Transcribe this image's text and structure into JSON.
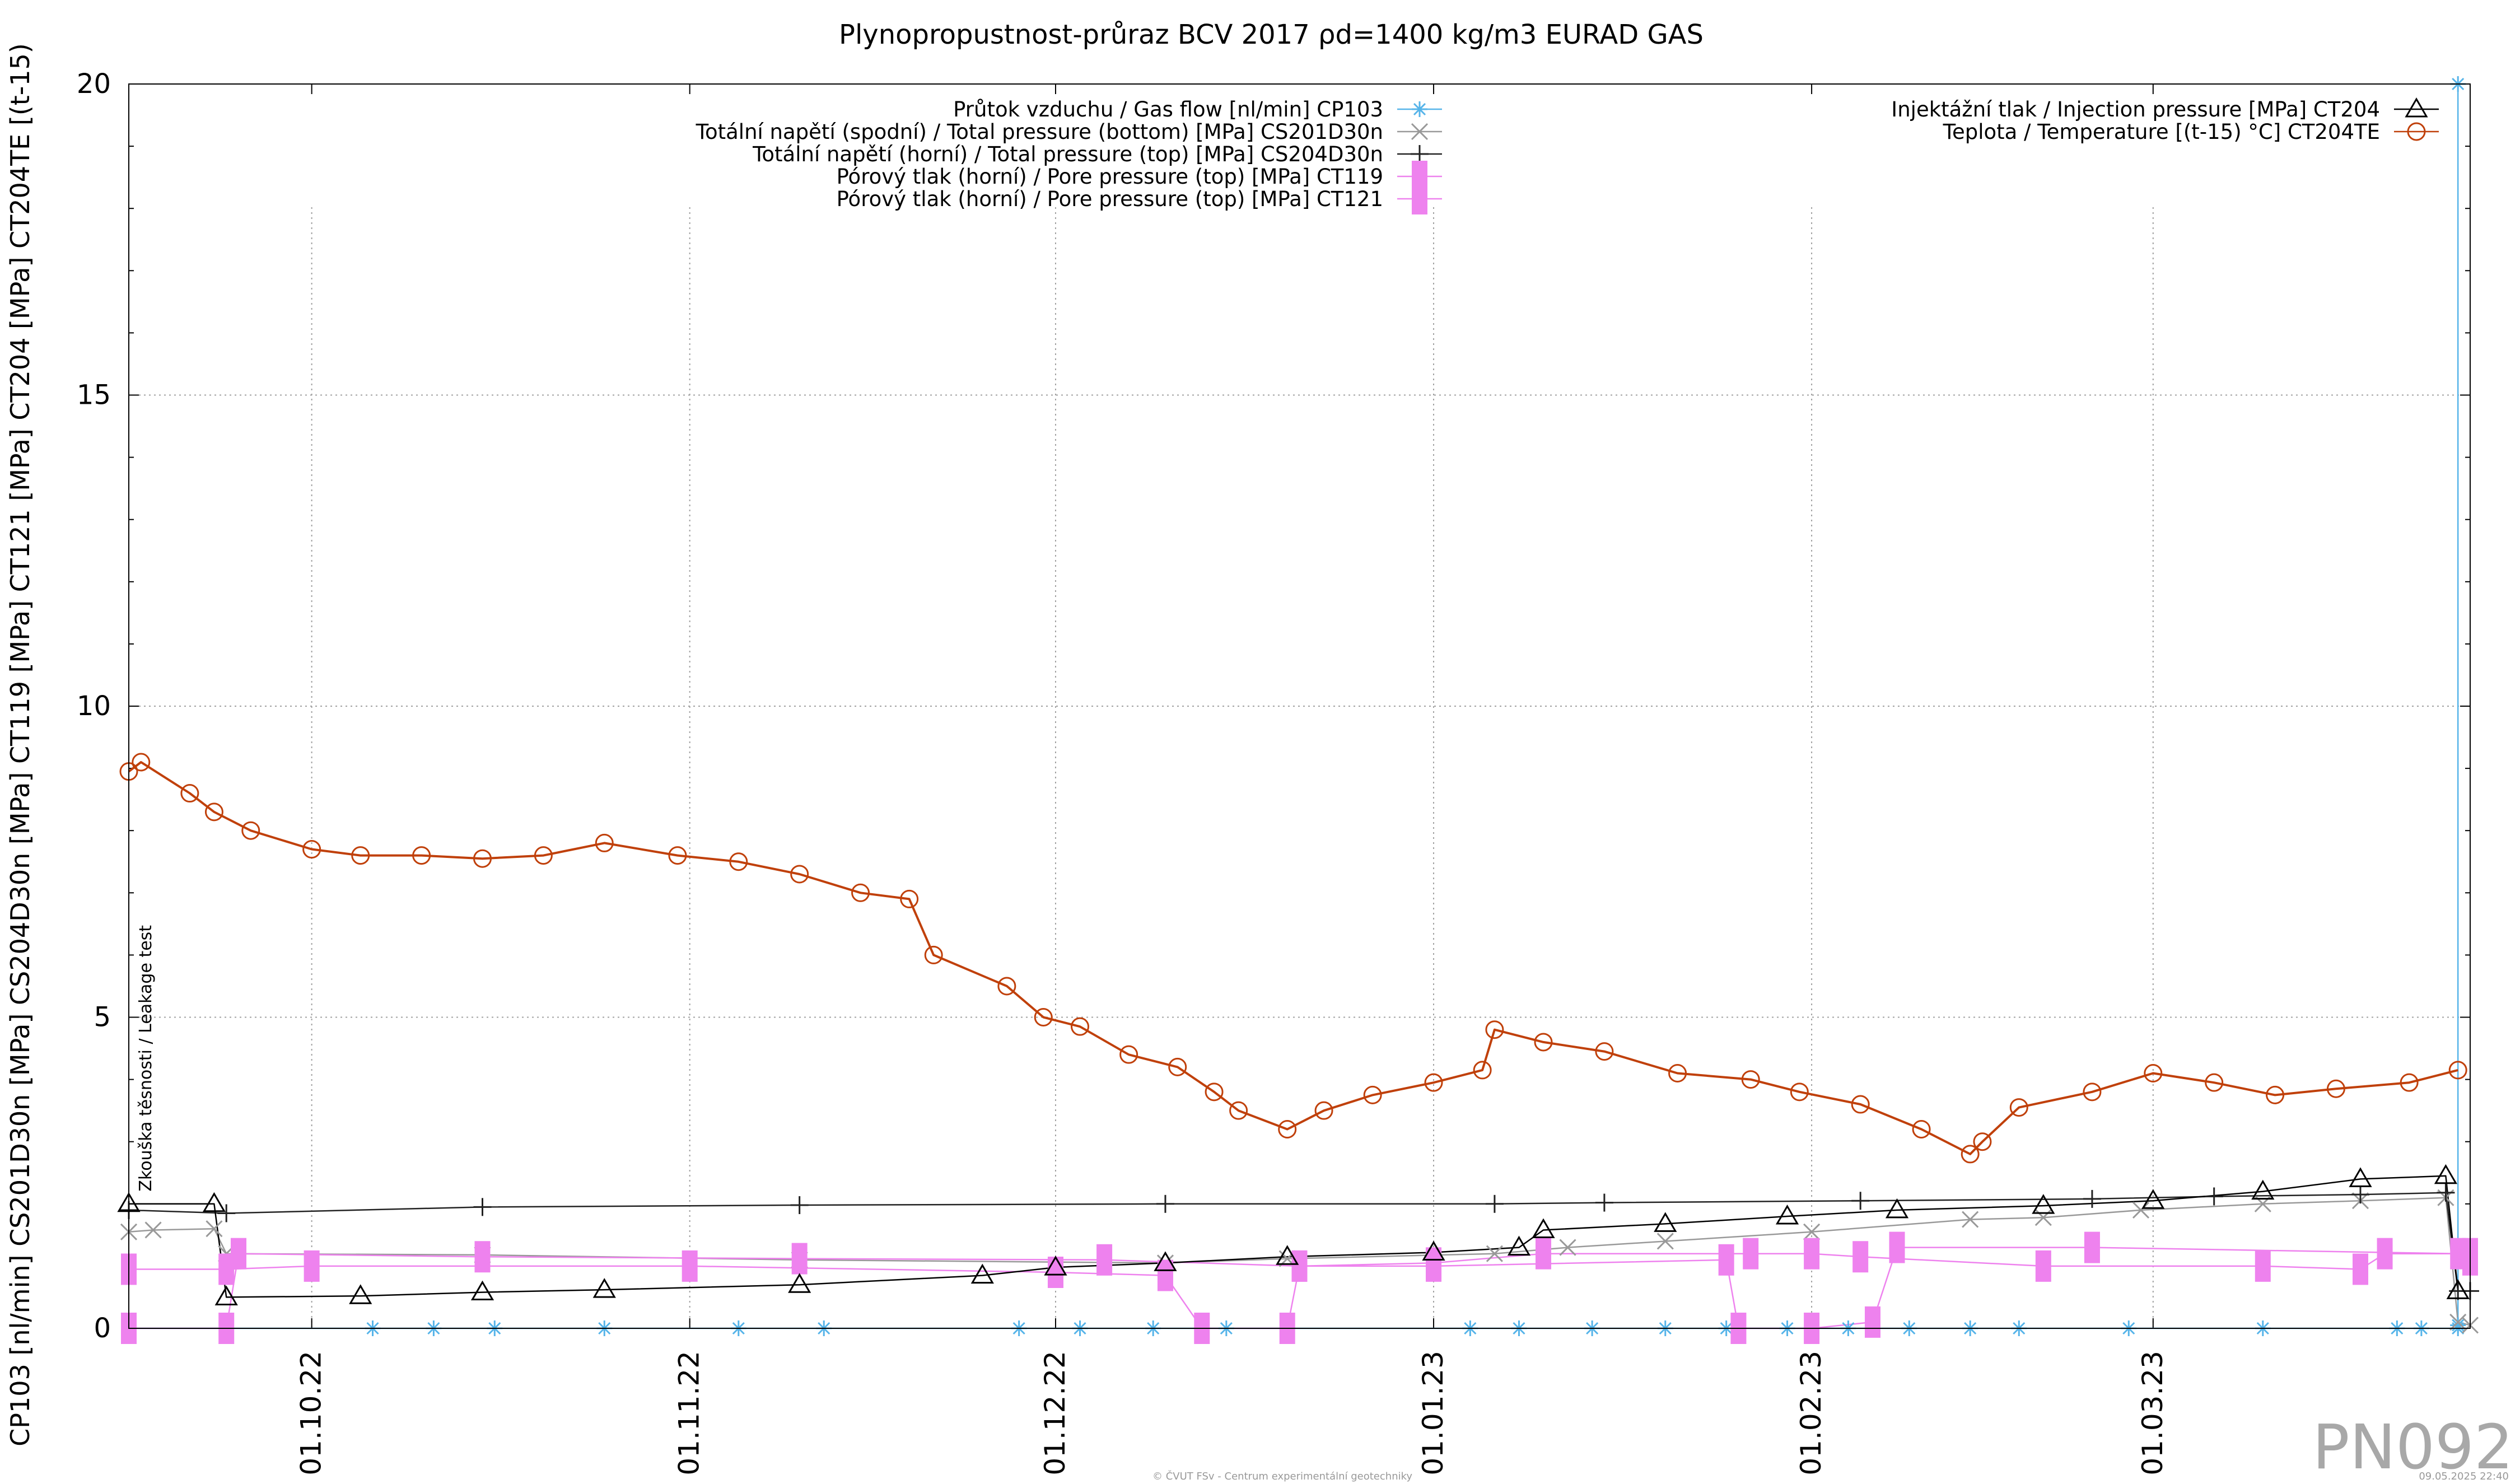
{
  "chart_data": {
    "type": "line",
    "title": "Plynopropustnost-průraz BCV 2017 ρd=1400 kg/m3 EURAD GAS",
    "ylabel": "CP103 [nl/min] CS201D30n [MPa] CS204D30n [MPa] CT119 [MPa] CT121 [MPa] CT204 [MPa] CT204TE [(t-15)",
    "xlabel": "",
    "ylim": [
      0,
      20
    ],
    "y_ticks": [
      "0",
      "5",
      "10",
      "15",
      "20"
    ],
    "x_axis": {
      "type": "date",
      "start": "2022-09-16",
      "end": "2023-03-27"
    },
    "x_ticks": [
      {
        "date": "2022-10-01",
        "label": "01.10.22"
      },
      {
        "date": "2022-11-01",
        "label": "01.11.22"
      },
      {
        "date": "2022-12-01",
        "label": "01.12.22"
      },
      {
        "date": "2023-01-01",
        "label": "01.01.23"
      },
      {
        "date": "2023-02-01",
        "label": "01.02.23"
      },
      {
        "date": "2023-03-01",
        "label": "01.03.23"
      }
    ],
    "grid": true,
    "legend_left_position": "top-center",
    "legend_right_position": "top-right",
    "annotation": {
      "date": "2022-09-17",
      "text": "Zkouška těsnosti / Leakage test"
    },
    "series": [
      {
        "name": "Průtok vzduchu / Gas flow [nl/min] CP103",
        "color": "#56b4e9",
        "marker": "star",
        "legend_group": "left",
        "points": [
          [
            "2022-09-16",
            0
          ],
          [
            "2022-10-06",
            0
          ],
          [
            "2022-10-11",
            0
          ],
          [
            "2022-10-16",
            0
          ],
          [
            "2022-10-25",
            0
          ],
          [
            "2022-11-05",
            0
          ],
          [
            "2022-11-12",
            0
          ],
          [
            "2022-11-28",
            0
          ],
          [
            "2022-12-03",
            0
          ],
          [
            "2022-12-09",
            0
          ],
          [
            "2022-12-15",
            0
          ],
          [
            "2022-12-20",
            0
          ],
          [
            "2023-01-04",
            0
          ],
          [
            "2023-01-08",
            0
          ],
          [
            "2023-01-14",
            0
          ],
          [
            "2023-01-20",
            0
          ],
          [
            "2023-01-25",
            0
          ],
          [
            "2023-01-30",
            0
          ],
          [
            "2023-02-04",
            0
          ],
          [
            "2023-02-09",
            0
          ],
          [
            "2023-02-14",
            0
          ],
          [
            "2023-02-18",
            0
          ],
          [
            "2023-02-27",
            0
          ],
          [
            "2023-03-10",
            0
          ],
          [
            "2023-03-21",
            0
          ],
          [
            "2023-03-23",
            0
          ],
          [
            "2023-03-26",
            0
          ],
          [
            "2023-03-26",
            0.05
          ],
          [
            "2023-03-26",
            20
          ]
        ]
      },
      {
        "name": "Totální napětí (spodní) / Total pressure (bottom) [MPa] CS201D30n",
        "color": "#999999",
        "marker": "x",
        "legend_group": "left",
        "points": [
          [
            "2022-09-16",
            1.55
          ],
          [
            "2022-09-18",
            1.58
          ],
          [
            "2022-09-23",
            1.6
          ],
          [
            "2022-09-24",
            1.2
          ],
          [
            "2022-10-15",
            1.18
          ],
          [
            "2022-11-10",
            1.1
          ],
          [
            "2022-12-10",
            1.05
          ],
          [
            "2022-12-20",
            1.12
          ],
          [
            "2023-01-06",
            1.2
          ],
          [
            "2023-01-12",
            1.3
          ],
          [
            "2023-01-20",
            1.4
          ],
          [
            "2023-02-01",
            1.55
          ],
          [
            "2023-02-14",
            1.75
          ],
          [
            "2023-02-20",
            1.78
          ],
          [
            "2023-02-28",
            1.9
          ],
          [
            "2023-03-10",
            2.0
          ],
          [
            "2023-03-18",
            2.05
          ],
          [
            "2023-03-25",
            2.1
          ],
          [
            "2023-03-26",
            0.1
          ],
          [
            "2023-03-27",
            0.05
          ]
        ]
      },
      {
        "name": "Totální napětí (horní) / Total pressure (top) [MPa] CS204D30n",
        "color": "#222222",
        "marker": "plus",
        "legend_group": "left",
        "points": [
          [
            "2022-09-16",
            1.9
          ],
          [
            "2022-09-24",
            1.85
          ],
          [
            "2022-10-15",
            1.95
          ],
          [
            "2022-11-10",
            1.98
          ],
          [
            "2022-12-10",
            2.0
          ],
          [
            "2023-01-06",
            2.0
          ],
          [
            "2023-01-15",
            2.02
          ],
          [
            "2023-02-05",
            2.05
          ],
          [
            "2023-02-24",
            2.08
          ],
          [
            "2023-03-06",
            2.12
          ],
          [
            "2023-03-18",
            2.15
          ],
          [
            "2023-03-25",
            2.18
          ],
          [
            "2023-03-26",
            0.6
          ],
          [
            "2023-03-27",
            0.6
          ]
        ]
      },
      {
        "name": "Pórový tlak (horní) / Pore pressure (top) [MPa] CT119",
        "color": "#ee82ee",
        "marker": "square",
        "legend_group": "left",
        "points": [
          [
            "2022-09-16",
            0.95
          ],
          [
            "2022-09-24",
            0.95
          ],
          [
            "2022-10-01",
            1.0
          ],
          [
            "2022-11-01",
            1.0
          ],
          [
            "2022-12-01",
            0.9
          ],
          [
            "2022-12-10",
            0.85
          ],
          [
            "2022-12-13",
            0
          ],
          [
            "2022-12-20",
            0
          ],
          [
            "2022-12-21",
            1.0
          ],
          [
            "2023-01-01",
            1.0
          ],
          [
            "2023-01-25",
            1.1
          ],
          [
            "2023-01-26",
            0
          ],
          [
            "2023-02-01",
            0
          ],
          [
            "2023-02-06",
            0.1
          ],
          [
            "2023-02-08",
            1.3
          ],
          [
            "2023-02-24",
            1.3
          ],
          [
            "2023-03-26",
            1.2
          ],
          [
            "2023-03-27",
            1.1
          ]
        ]
      },
      {
        "name": "Pórový tlak (horní) / Pore pressure (top) [MPa] CT121",
        "color": "#ee82ee",
        "marker": "square",
        "legend_group": "left",
        "points": [
          [
            "2022-09-16",
            0
          ],
          [
            "2022-09-24",
            0
          ],
          [
            "2022-09-25",
            1.2
          ],
          [
            "2022-10-15",
            1.15
          ],
          [
            "2022-11-10",
            1.12
          ],
          [
            "2022-12-05",
            1.1
          ],
          [
            "2022-12-21",
            1.0
          ],
          [
            "2023-01-01",
            1.05
          ],
          [
            "2023-01-10",
            1.2
          ],
          [
            "2023-01-27",
            1.2
          ],
          [
            "2023-02-01",
            1.2
          ],
          [
            "2023-02-05",
            1.15
          ],
          [
            "2023-02-20",
            1.0
          ],
          [
            "2023-03-10",
            1.0
          ],
          [
            "2023-03-18",
            0.95
          ],
          [
            "2023-03-20",
            1.2
          ],
          [
            "2023-03-27",
            1.2
          ]
        ]
      },
      {
        "name": "Injektážní tlak / Injection pressure [MPa] CT204",
        "color": "#000000",
        "marker": "triangle",
        "legend_group": "right",
        "points": [
          [
            "2022-09-16",
            2.0
          ],
          [
            "2022-09-23",
            2.0
          ],
          [
            "2022-09-24",
            0.5
          ],
          [
            "2022-10-05",
            0.52
          ],
          [
            "2022-10-15",
            0.58
          ],
          [
            "2022-10-25",
            0.62
          ],
          [
            "2022-11-10",
            0.7
          ],
          [
            "2022-11-25",
            0.85
          ],
          [
            "2022-12-01",
            0.98
          ],
          [
            "2022-12-10",
            1.05
          ],
          [
            "2022-12-20",
            1.15
          ],
          [
            "2023-01-01",
            1.22
          ],
          [
            "2023-01-08",
            1.3
          ],
          [
            "2023-01-10",
            1.58
          ],
          [
            "2023-01-20",
            1.68
          ],
          [
            "2023-01-30",
            1.8
          ],
          [
            "2023-02-08",
            1.9
          ],
          [
            "2023-02-20",
            1.97
          ],
          [
            "2023-03-01",
            2.05
          ],
          [
            "2023-03-10",
            2.2
          ],
          [
            "2023-03-18",
            2.4
          ],
          [
            "2023-03-25",
            2.45
          ],
          [
            "2023-03-26",
            0.6
          ]
        ]
      },
      {
        "name": "Teplota / Temperature [(t-15) °C] CT204TE",
        "color": "#c0400a",
        "marker": "circle",
        "legend_group": "right",
        "points": [
          [
            "2022-09-16",
            8.95
          ],
          [
            "2022-09-17",
            9.1
          ],
          [
            "2022-09-21",
            8.6
          ],
          [
            "2022-09-23",
            8.3
          ],
          [
            "2022-09-26",
            8.0
          ],
          [
            "2022-10-01",
            7.7
          ],
          [
            "2022-10-05",
            7.6
          ],
          [
            "2022-10-10",
            7.6
          ],
          [
            "2022-10-15",
            7.55
          ],
          [
            "2022-10-20",
            7.6
          ],
          [
            "2022-10-25",
            7.8
          ],
          [
            "2022-10-31",
            7.6
          ],
          [
            "2022-11-05",
            7.5
          ],
          [
            "2022-11-10",
            7.3
          ],
          [
            "2022-11-15",
            7.0
          ],
          [
            "2022-11-19",
            6.9
          ],
          [
            "2022-11-21",
            6.0
          ],
          [
            "2022-11-27",
            5.5
          ],
          [
            "2022-11-30",
            5.0
          ],
          [
            "2022-12-03",
            4.85
          ],
          [
            "2022-12-07",
            4.4
          ],
          [
            "2022-12-11",
            4.2
          ],
          [
            "2022-12-14",
            3.8
          ],
          [
            "2022-12-16",
            3.5
          ],
          [
            "2022-12-20",
            3.2
          ],
          [
            "2022-12-23",
            3.5
          ],
          [
            "2022-12-27",
            3.75
          ],
          [
            "2023-01-01",
            3.95
          ],
          [
            "2023-01-05",
            4.15
          ],
          [
            "2023-01-06",
            4.8
          ],
          [
            "2023-01-10",
            4.6
          ],
          [
            "2023-01-15",
            4.45
          ],
          [
            "2023-01-21",
            4.1
          ],
          [
            "2023-01-27",
            4.0
          ],
          [
            "2023-01-31",
            3.8
          ],
          [
            "2023-02-05",
            3.6
          ],
          [
            "2023-02-10",
            3.2
          ],
          [
            "2023-02-14",
            2.8
          ],
          [
            "2023-02-15",
            3.0
          ],
          [
            "2023-02-18",
            3.55
          ],
          [
            "2023-02-24",
            3.8
          ],
          [
            "2023-03-01",
            4.1
          ],
          [
            "2023-03-06",
            3.95
          ],
          [
            "2023-03-11",
            3.75
          ],
          [
            "2023-03-16",
            3.85
          ],
          [
            "2023-03-22",
            3.95
          ],
          [
            "2023-03-26",
            4.15
          ]
        ]
      }
    ]
  },
  "footer": {
    "plot_id": "PN092",
    "copyright": "© ČVUT FSv - Centrum experimentální geotechniky",
    "timestamp": "09.05.2025 22:40"
  }
}
